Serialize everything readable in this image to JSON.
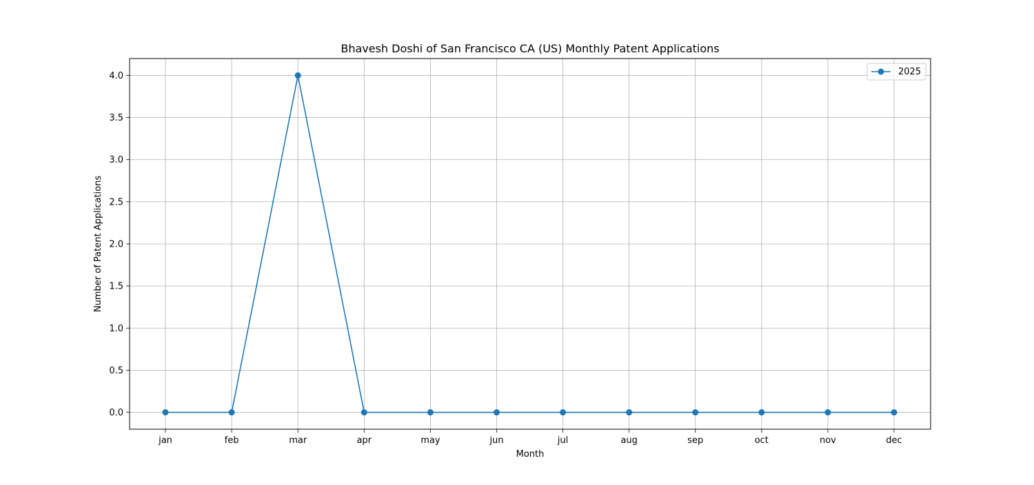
{
  "chart_data": {
    "type": "line",
    "title": "Bhavesh Doshi of San Francisco CA (US) Monthly Patent Applications",
    "xlabel": "Month",
    "ylabel": "Number of Patent Applications",
    "categories": [
      "jan",
      "feb",
      "mar",
      "apr",
      "may",
      "jun",
      "jul",
      "aug",
      "sep",
      "oct",
      "nov",
      "dec"
    ],
    "series": [
      {
        "name": "2025",
        "color": "#1f77b4",
        "values": [
          0,
          0,
          4,
          0,
          0,
          0,
          0,
          0,
          0,
          0,
          0,
          0
        ]
      }
    ],
    "ylim": [
      -0.2,
      4.2
    ],
    "yticks": [
      0.0,
      0.5,
      1.0,
      1.5,
      2.0,
      2.5,
      3.0,
      3.5,
      4.0
    ],
    "ytick_labels": [
      "0.0",
      "0.5",
      "1.0",
      "1.5",
      "2.0",
      "2.5",
      "3.0",
      "3.5",
      "4.0"
    ],
    "grid": true,
    "legend_position": "top-right",
    "colors": {
      "grid": "#b0b0b0",
      "axes": "#000000"
    }
  }
}
